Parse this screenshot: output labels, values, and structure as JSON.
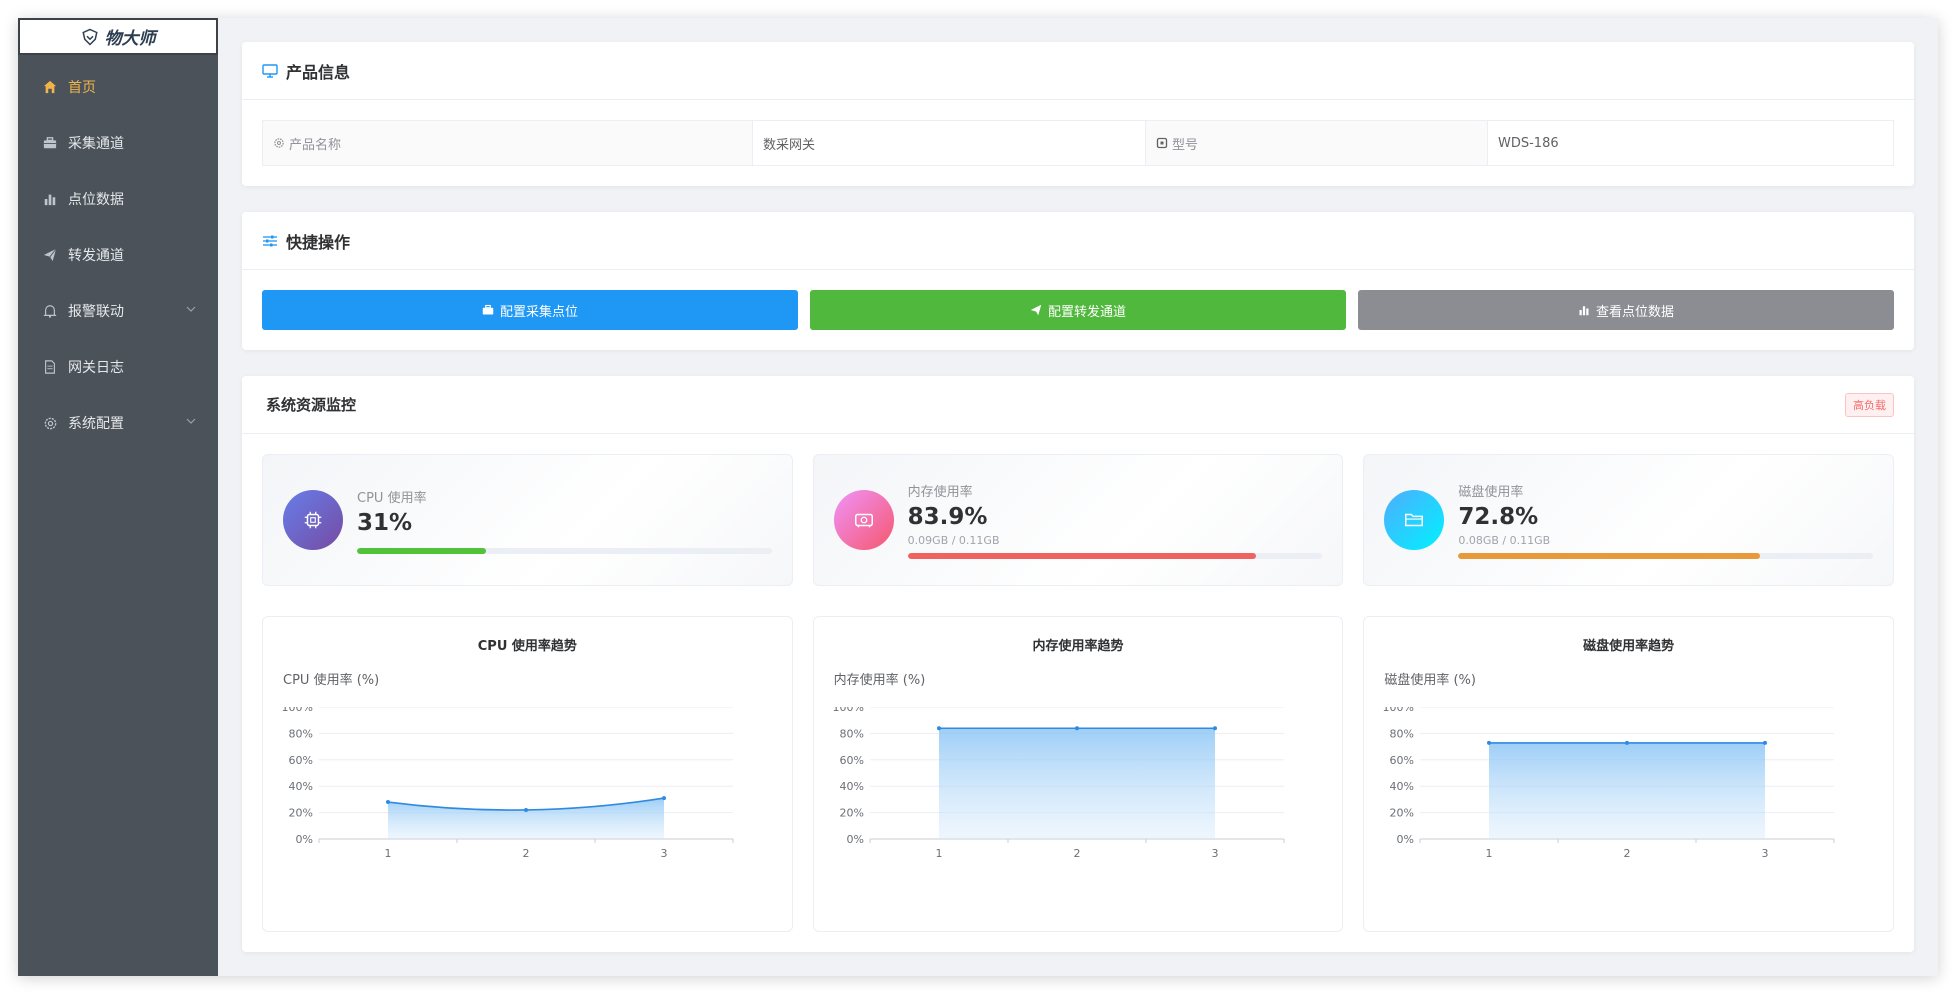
{
  "brand": {
    "name": "物大师"
  },
  "sidebar": {
    "items": [
      {
        "label": "首页",
        "icon": "home-icon",
        "active": true
      },
      {
        "label": "采集通道",
        "icon": "briefcase-icon"
      },
      {
        "label": "点位数据",
        "icon": "bar-chart-icon"
      },
      {
        "label": "转发通道",
        "icon": "send-icon"
      },
      {
        "label": "报警联动",
        "icon": "bell-icon",
        "expandable": true
      },
      {
        "label": "网关日志",
        "icon": "document-icon"
      },
      {
        "label": "系统配置",
        "icon": "gear-icon",
        "expandable": true
      }
    ]
  },
  "product_info": {
    "title": "产品信息",
    "name_label": "产品名称",
    "name_value": "数采网关",
    "model_label": "型号",
    "model_value": "WDS-186"
  },
  "quick_actions": {
    "title": "快捷操作",
    "buttons": [
      {
        "label": "配置采集点位",
        "color": "#1e97f5"
      },
      {
        "label": "配置转发通道",
        "color": "#50b83c"
      },
      {
        "label": "查看点位数据",
        "color": "#8b8d92"
      }
    ]
  },
  "monitor": {
    "title": "系统资源监控",
    "badge": "高负载",
    "stats": [
      {
        "label": "CPU 使用率",
        "value": "31%",
        "sub": "",
        "percent": 31,
        "color": "#52c23a"
      },
      {
        "label": "内存使用率",
        "value": "83.9%",
        "sub": "0.09GB / 0.11GB",
        "percent": 83.9,
        "color": "#f0625f"
      },
      {
        "label": "磁盘使用率",
        "value": "72.8%",
        "sub": "0.08GB / 0.11GB",
        "percent": 72.8,
        "color": "#e8993a"
      }
    ]
  },
  "chart_data": [
    {
      "type": "area",
      "title": "CPU 使用率趋势",
      "ylabel": "CPU 使用率 (%)",
      "x": [
        "1",
        "2",
        "3"
      ],
      "values": [
        28,
        22,
        31
      ],
      "ylim": [
        0,
        100
      ],
      "yticks": [
        "0%",
        "20%",
        "40%",
        "60%",
        "80%",
        "100%"
      ],
      "grid": true,
      "smooth": true
    },
    {
      "type": "area",
      "title": "内存使用率趋势",
      "ylabel": "内存使用率 (%)",
      "x": [
        "1",
        "2",
        "3"
      ],
      "values": [
        83.9,
        83.9,
        83.9
      ],
      "ylim": [
        0,
        100
      ],
      "yticks": [
        "0%",
        "20%",
        "40%",
        "60%",
        "80%",
        "100%"
      ],
      "grid": true,
      "smooth": false
    },
    {
      "type": "area",
      "title": "磁盘使用率趋势",
      "ylabel": "磁盘使用率 (%)",
      "x": [
        "1",
        "2",
        "3"
      ],
      "values": [
        72.8,
        72.8,
        72.8
      ],
      "ylim": [
        0,
        100
      ],
      "yticks": [
        "0%",
        "20%",
        "40%",
        "60%",
        "80%",
        "100%"
      ],
      "grid": true,
      "smooth": false
    }
  ]
}
